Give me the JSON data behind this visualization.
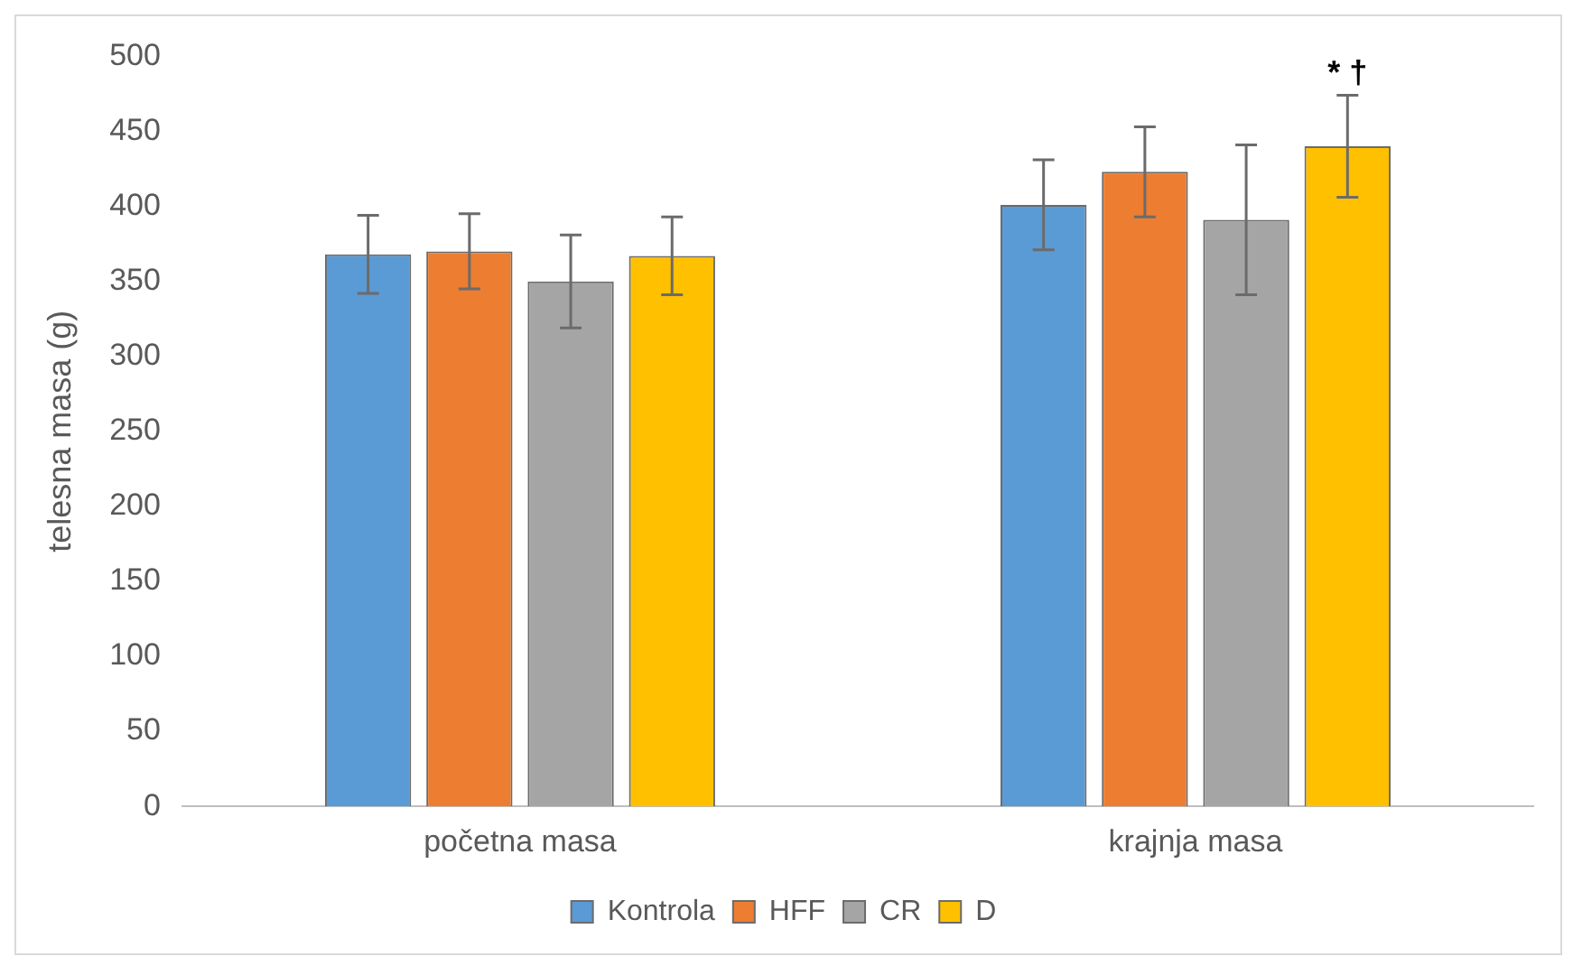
{
  "chart_data": {
    "type": "bar",
    "ylabel": "telesna masa (g)",
    "categories": [
      "početna masa",
      "krajnja masa"
    ],
    "series": [
      {
        "name": "Kontrola",
        "color": "#5b9bd5",
        "values": [
          368,
          401
        ],
        "errors": [
          26,
          30
        ]
      },
      {
        "name": "HFF",
        "color": "#ed7d31",
        "values": [
          370,
          423
        ],
        "errors": [
          25,
          30
        ]
      },
      {
        "name": "CR",
        "color": "#a5a5a5",
        "values": [
          350,
          391
        ],
        "errors": [
          31,
          50
        ]
      },
      {
        "name": "D",
        "color": "#ffc000",
        "values": [
          367,
          440
        ],
        "errors": [
          26,
          34
        ]
      }
    ],
    "ylim": [
      0,
      500
    ],
    "yticks": [
      0,
      50,
      100,
      150,
      200,
      250,
      300,
      350,
      400,
      450,
      500
    ],
    "grid": false,
    "legend": "bottom",
    "annotations": [
      "* †"
    ]
  }
}
